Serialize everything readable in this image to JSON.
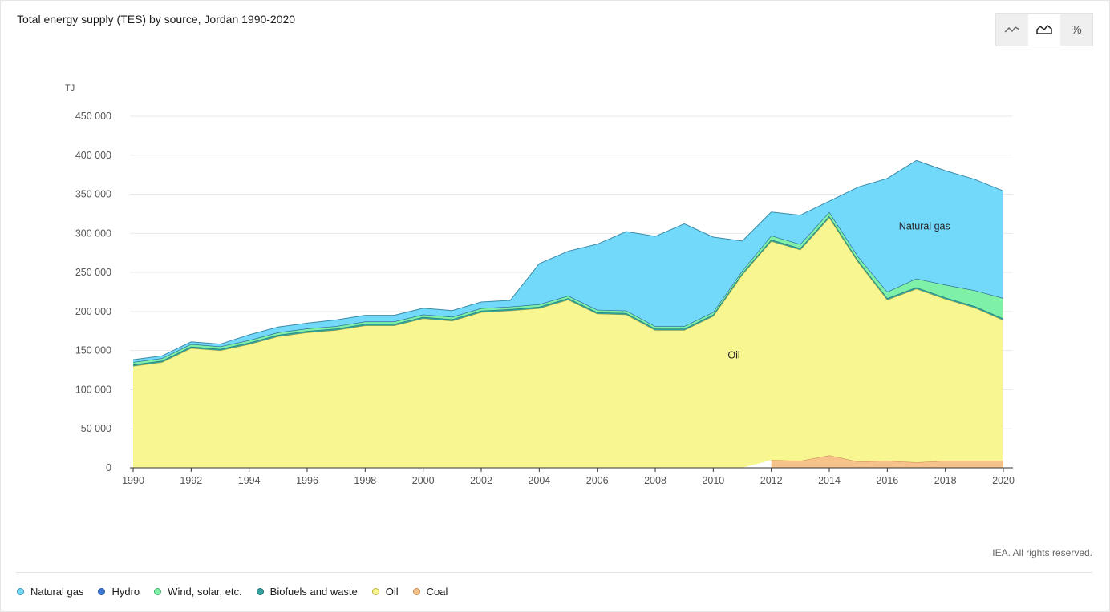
{
  "title": "Total energy supply (TES) by source, Jordan 1990-2020",
  "toggle": {
    "buttons": [
      {
        "name": "line-chart",
        "icon": "line-chart-icon",
        "active": false
      },
      {
        "name": "area-chart",
        "icon": "area-chart-icon",
        "active": true
      },
      {
        "name": "percent",
        "icon": "percent-icon",
        "label": "%",
        "active": false
      }
    ]
  },
  "footer": {
    "rights": "IEA. All rights reserved."
  },
  "legend": [
    {
      "label": "Natural gas",
      "color": "#73d9fa",
      "border": "#3f8fb0"
    },
    {
      "label": "Hydro",
      "color": "#3c78d8",
      "border": "#2a56a0"
    },
    {
      "label": "Wind, solar, etc.",
      "color": "#7ff0a8",
      "border": "#3fae6b"
    },
    {
      "label": "Biofuels and waste",
      "color": "#33a3a0",
      "border": "#1f6f6c"
    },
    {
      "label": "Oil",
      "color": "#f8f690",
      "border": "#b8b43a"
    },
    {
      "label": "Coal",
      "color": "#f7c18a",
      "border": "#c48a50"
    }
  ],
  "chart_data": {
    "type": "area",
    "stacked": true,
    "unit": "TJ",
    "ylim": [
      0,
      450000
    ],
    "yticks": [
      0,
      50000,
      100000,
      150000,
      200000,
      250000,
      300000,
      350000,
      400000,
      450000
    ],
    "ytick_labels": [
      "0",
      "50 000",
      "100 000",
      "150 000",
      "200 000",
      "250 000",
      "300 000",
      "350 000",
      "400 000",
      "450 000"
    ],
    "xlim": [
      1990,
      2020
    ],
    "xticks": [
      1990,
      1992,
      1994,
      1996,
      1998,
      2000,
      2002,
      2004,
      2006,
      2008,
      2010,
      2012,
      2014,
      2016,
      2018,
      2020
    ],
    "grid": true,
    "x": [
      1990,
      1991,
      1992,
      1993,
      1994,
      1995,
      1996,
      1997,
      1998,
      1999,
      2000,
      2001,
      2002,
      2003,
      2004,
      2005,
      2006,
      2007,
      2008,
      2009,
      2010,
      2011,
      2012,
      2013,
      2014,
      2015,
      2016,
      2017,
      2018,
      2019,
      2020
    ],
    "series": [
      {
        "name": "Coal",
        "color": "#f7c18a",
        "stroke": "#c48a50",
        "values": [
          null,
          null,
          null,
          null,
          null,
          null,
          null,
          null,
          null,
          null,
          null,
          null,
          null,
          null,
          null,
          null,
          null,
          null,
          null,
          null,
          null,
          null,
          10000,
          9000,
          16000,
          8000,
          9000,
          7000,
          9000,
          9000,
          9000
        ]
      },
      {
        "name": "Oil",
        "color": "#f8f690",
        "stroke": "#a8a43a",
        "values": [
          130000,
          135000,
          153000,
          150000,
          158000,
          168000,
          173000,
          176000,
          182000,
          182000,
          191000,
          188000,
          199000,
          201000,
          204000,
          215000,
          197000,
          196000,
          176000,
          176000,
          194000,
          247000,
          280000,
          270000,
          304000,
          255000,
          206000,
          222000,
          207000,
          196000,
          180000
        ]
      },
      {
        "name": "Biofuels and waste",
        "color": "#33a3a0",
        "stroke": "#1f6f6c",
        "values": [
          2000,
          2000,
          2000,
          2000,
          2000,
          2000,
          2000,
          2000,
          2000,
          2000,
          2000,
          2000,
          2000,
          2000,
          2000,
          2000,
          2000,
          2000,
          2000,
          2000,
          2000,
          2000,
          2000,
          2000,
          2000,
          2000,
          2000,
          2000,
          2000,
          2000,
          2000
        ]
      },
      {
        "name": "Wind, solar, etc.",
        "color": "#7ff0a8",
        "stroke": "#3fae6b",
        "values": [
          3000,
          3000,
          3000,
          3000,
          3000,
          3000,
          3000,
          3000,
          3000,
          3000,
          3000,
          3000,
          3000,
          3000,
          3000,
          3000,
          3000,
          3000,
          3000,
          3000,
          3000,
          3000,
          5000,
          5000,
          5000,
          5000,
          8000,
          11000,
          16000,
          20000,
          26000
        ]
      },
      {
        "name": "Hydro",
        "color": "#3c78d8",
        "stroke": "#2a56a0",
        "values": [
          200,
          200,
          200,
          200,
          200,
          200,
          200,
          200,
          200,
          200,
          200,
          200,
          200,
          200,
          200,
          200,
          200,
          200,
          200,
          200,
          200,
          200,
          200,
          200,
          200,
          200,
          200,
          200,
          200,
          200,
          200
        ]
      },
      {
        "name": "Natural gas",
        "color": "#73d9fa",
        "stroke": "#3a8aa8",
        "values": [
          3000,
          3000,
          3000,
          3000,
          7000,
          7000,
          7000,
          8000,
          8000,
          8000,
          8000,
          8000,
          8000,
          8000,
          52000,
          57000,
          84000,
          101000,
          115000,
          131000,
          96000,
          38000,
          30000,
          37000,
          14000,
          89000,
          145000,
          151000,
          146000,
          142000,
          137000
        ]
      }
    ],
    "annotations": [
      {
        "text": "Natural gas",
        "x": 2016.4,
        "y": 305000
      },
      {
        "text": "Oil",
        "x": 2010.5,
        "y": 140000
      }
    ]
  }
}
